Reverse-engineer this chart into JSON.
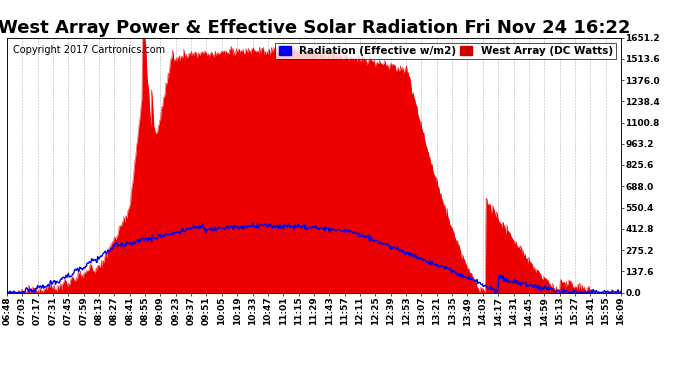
{
  "title": "West Array Power & Effective Solar Radiation Fri Nov 24 16:22",
  "copyright": "Copyright 2017 Cartronics.com",
  "legend_labels": [
    "Radiation (Effective w/m2)",
    "West Array (DC Watts)"
  ],
  "legend_colors": [
    "#0000ee",
    "#cc0000"
  ],
  "bg_color": "#ffffff",
  "plot_bg_color": "#ffffff",
  "grid_color": "#aaaaaa",
  "y_max": 1651.2,
  "y_min": 0.0,
  "y_ticks": [
    0.0,
    137.6,
    275.2,
    412.8,
    550.4,
    688.0,
    825.6,
    963.2,
    1100.8,
    1238.4,
    1376.0,
    1513.6,
    1651.2
  ],
  "red_fill_color": "#ee0000",
  "blue_line_color": "#0000ee",
  "title_fontsize": 13,
  "copyright_fontsize": 7,
  "tick_fontsize": 6.5,
  "legend_fontsize": 7.5,
  "x_tick_labels": [
    "06:48",
    "07:03",
    "07:17",
    "07:31",
    "07:45",
    "07:59",
    "08:13",
    "08:27",
    "08:41",
    "08:55",
    "09:09",
    "09:23",
    "09:37",
    "09:51",
    "10:05",
    "10:19",
    "10:33",
    "10:47",
    "11:01",
    "11:15",
    "11:29",
    "11:43",
    "11:57",
    "12:11",
    "12:25",
    "12:39",
    "12:53",
    "13:07",
    "13:21",
    "13:35",
    "13:49",
    "14:03",
    "14:17",
    "14:31",
    "14:45",
    "14:59",
    "15:13",
    "15:27",
    "15:41",
    "15:55",
    "16:09"
  ]
}
